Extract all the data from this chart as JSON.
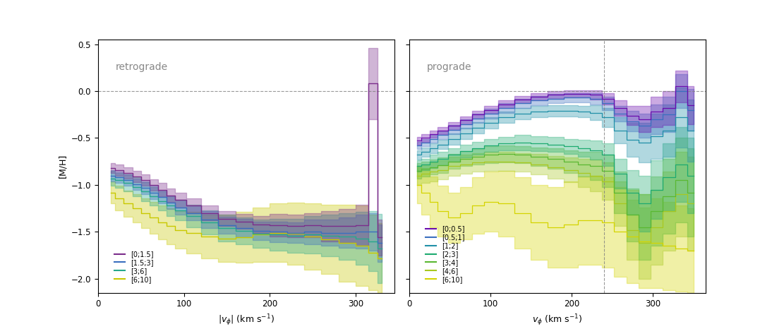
{
  "left_label": "retrograde",
  "right_label": "prograde",
  "ylabel": "[M/H]",
  "xlabel_left": "$|v_{\\phi}|$ (km s$^{-1}$)",
  "xlabel_right": "$v_{\\phi}$ (km s$^{-1}$)",
  "ylim": [
    -2.15,
    0.55
  ],
  "xlim_left": [
    0,
    345
  ],
  "xlim_right": [
    0,
    365
  ],
  "vline_x": 240,
  "left_legend_labels": [
    "[0;1.5]",
    "[1.5;3]",
    "[3;6]",
    "[6;10]"
  ],
  "left_legend_colors": [
    "#7b2d8b",
    "#3a6fbf",
    "#26a88b",
    "#c8c800"
  ],
  "right_legend_labels": [
    "[0;0.5]",
    "[0.5;1]",
    "[1;2]",
    "[2;3]",
    "[3;4]",
    "[4;6]",
    "[6;10]"
  ],
  "right_legend_colors": [
    "#6a0dad",
    "#3a6fbf",
    "#2190a8",
    "#1daa70",
    "#5ab832",
    "#a8c820",
    "#d4d400"
  ],
  "background_color": "#ffffff"
}
